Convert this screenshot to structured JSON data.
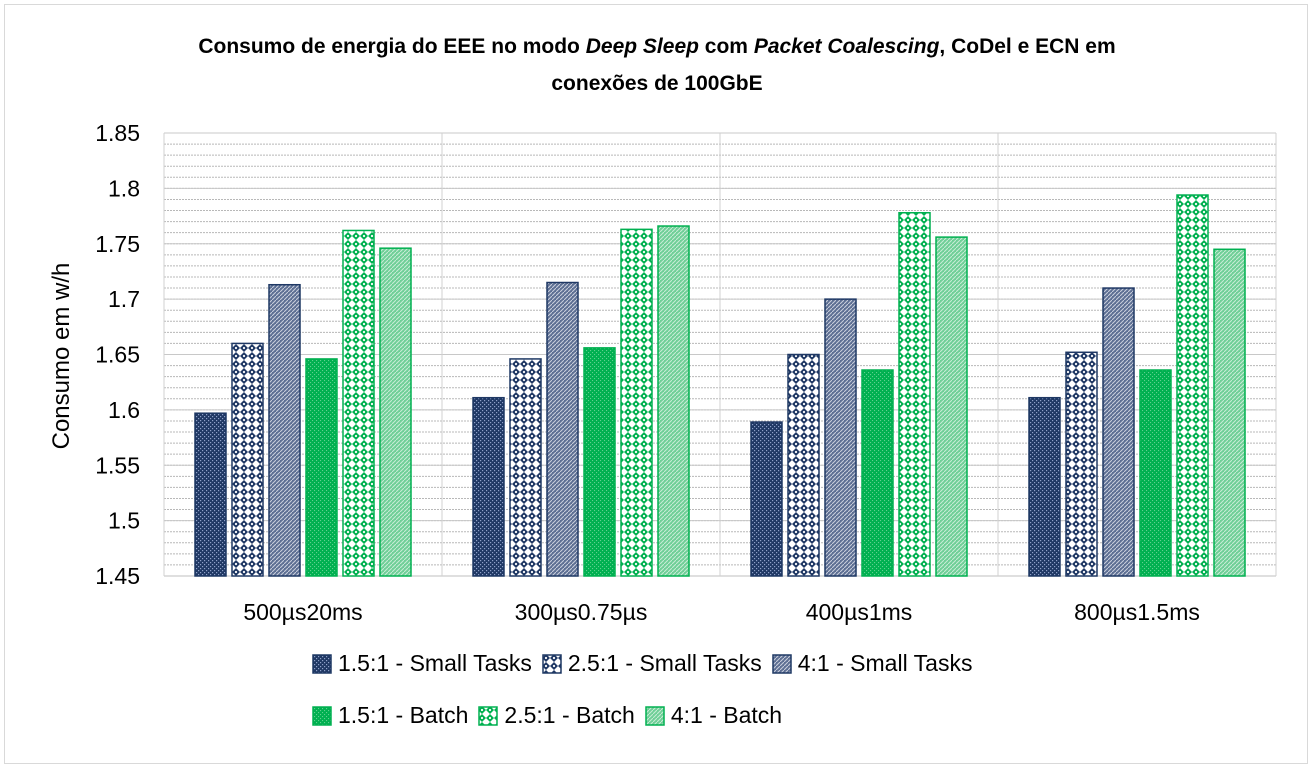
{
  "chart_data": {
    "type": "bar",
    "title": {
      "line1_parts": [
        {
          "text": "Consumo de energia do EEE no modo ",
          "italic": false
        },
        {
          "text": "Deep Sleep",
          "italic": true
        },
        {
          "text": " com ",
          "italic": false
        },
        {
          "text": "Packet Coalescing",
          "italic": true
        },
        {
          "text": ", CoDel e ECN em",
          "italic": false
        }
      ],
      "line2": "conexões de 100GbE"
    },
    "xlabel": "",
    "ylabel": "Consumo em w/h",
    "ylim": [
      1.45,
      1.85
    ],
    "yticks": [
      1.45,
      1.5,
      1.55,
      1.6,
      1.65,
      1.7,
      1.75,
      1.8,
      1.85
    ],
    "ytick_labels": [
      "1.45",
      "1.5",
      "1.55",
      "1.6",
      "1.65",
      "1.7",
      "1.75",
      "1.8",
      "1.85"
    ],
    "minor_grid_step": 0.01,
    "grid": true,
    "legend_position": "bottom",
    "categories": [
      "500µs20ms",
      "300µs0.75µs",
      "400µs1ms",
      "800µs1.5ms"
    ],
    "series": [
      {
        "name": "1.5:1 - Small Tasks",
        "values": [
          1.597,
          1.611,
          1.589,
          1.611
        ],
        "color": "#1f3864",
        "pattern": "dots-dark"
      },
      {
        "name": "2.5:1 - Small Tasks",
        "values": [
          1.66,
          1.646,
          1.65,
          1.652
        ],
        "color": "#1f3864",
        "pattern": "checker-dark"
      },
      {
        "name": "4:1 - Small Tasks",
        "values": [
          1.713,
          1.715,
          1.7,
          1.71
        ],
        "color": "#1f3864",
        "pattern": "hatch-dark"
      },
      {
        "name": "1.5:1 - Batch",
        "values": [
          1.646,
          1.656,
          1.636,
          1.636
        ],
        "color": "#00b050",
        "pattern": "dots-green"
      },
      {
        "name": "2.5:1 - Batch",
        "values": [
          1.762,
          1.763,
          1.778,
          1.794
        ],
        "color": "#00b050",
        "pattern": "checker-green"
      },
      {
        "name": "4:1 - Batch",
        "values": [
          1.746,
          1.766,
          1.756,
          1.745
        ],
        "color": "#00b050",
        "pattern": "hatch-green"
      }
    ]
  }
}
